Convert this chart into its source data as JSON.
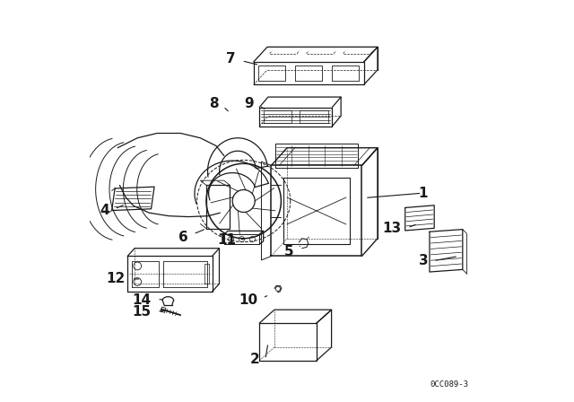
{
  "bg_color": "#ffffff",
  "line_color": "#1a1a1a",
  "diagram_code": "0CC089-3",
  "font_size_labels": 11,
  "lw": 0.9
}
